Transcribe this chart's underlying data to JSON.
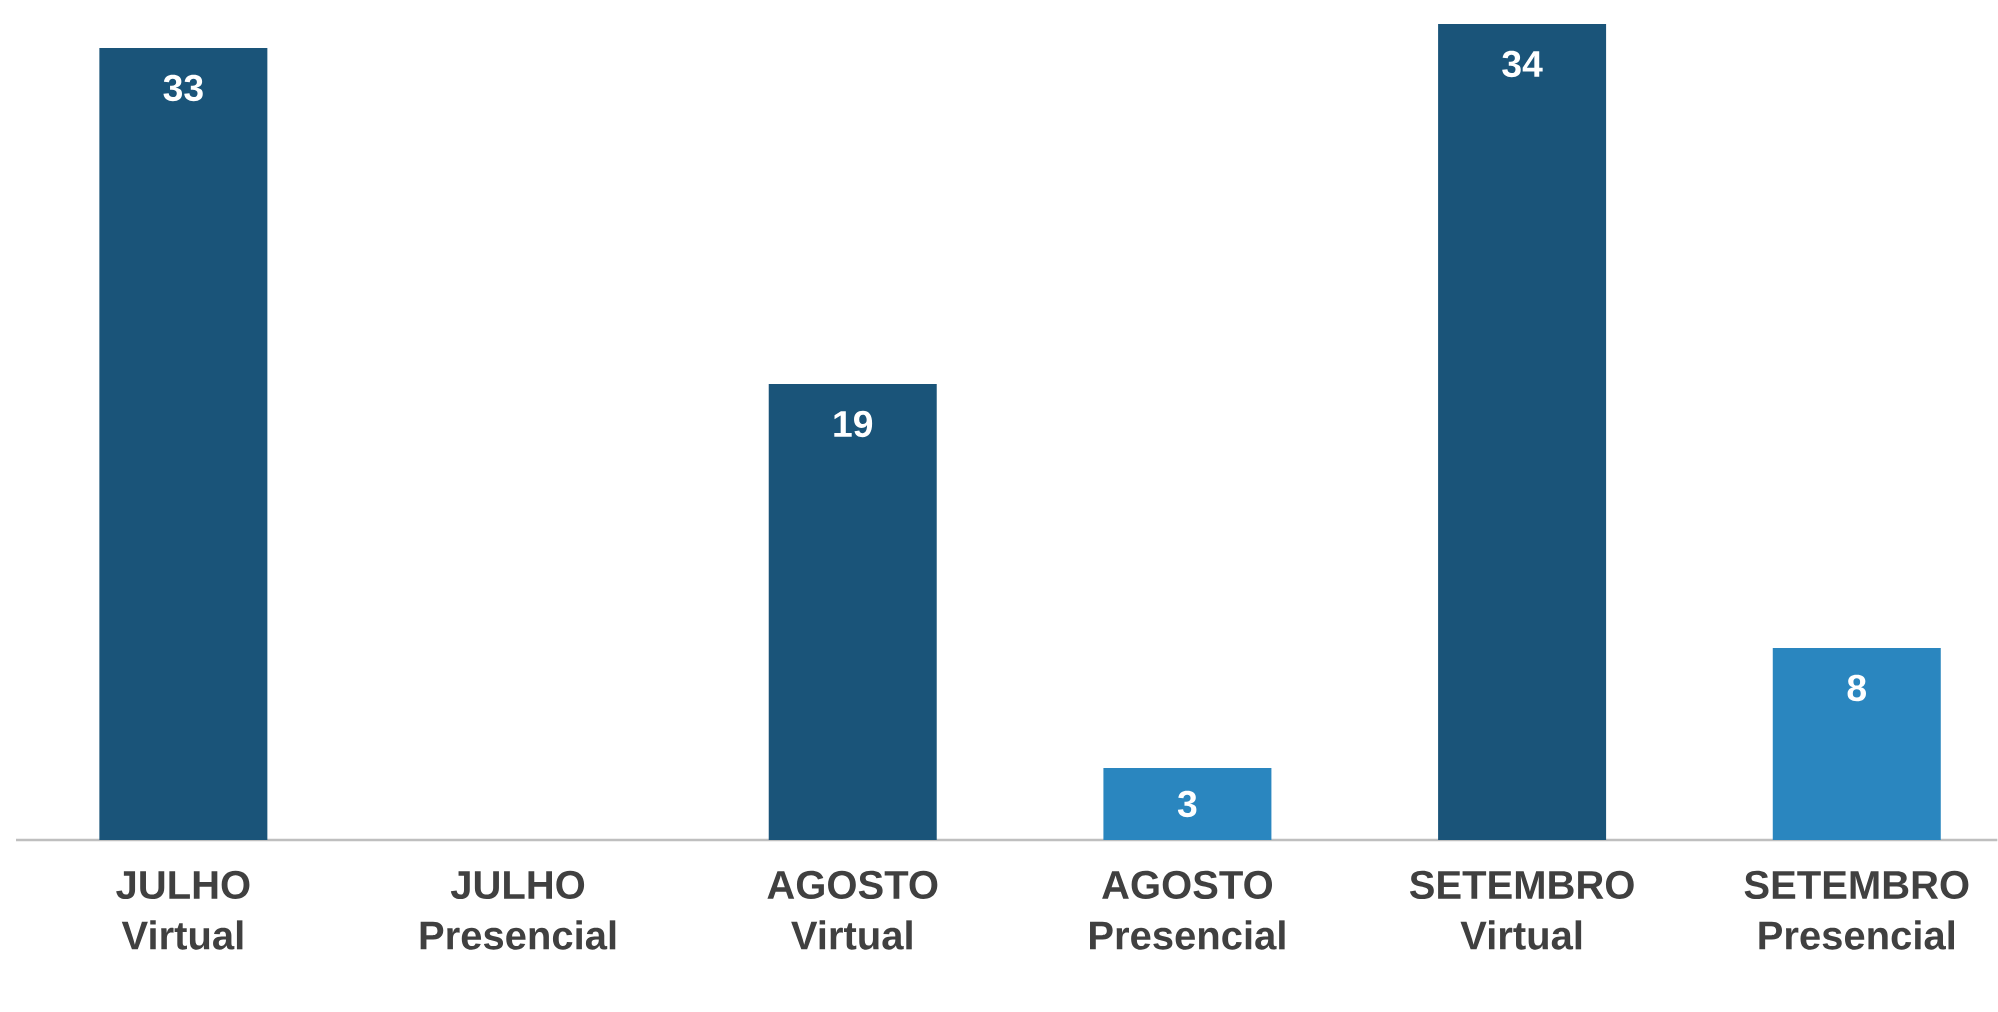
{
  "chart_data": {
    "type": "bar",
    "categories": [
      "JULHO Virtual",
      "JULHO Presencial",
      "AGOSTO Virtual",
      "AGOSTO Presencial",
      "SETEMBRO Virtual",
      "SETEMBRO Presencial"
    ],
    "values": [
      33,
      null,
      19,
      3,
      34,
      8
    ],
    "colors": [
      "#1a5479",
      "#2a86bf",
      "#1a5479",
      "#2a86bf",
      "#1a5479",
      "#2a86bf"
    ],
    "data_labels": true
  }
}
